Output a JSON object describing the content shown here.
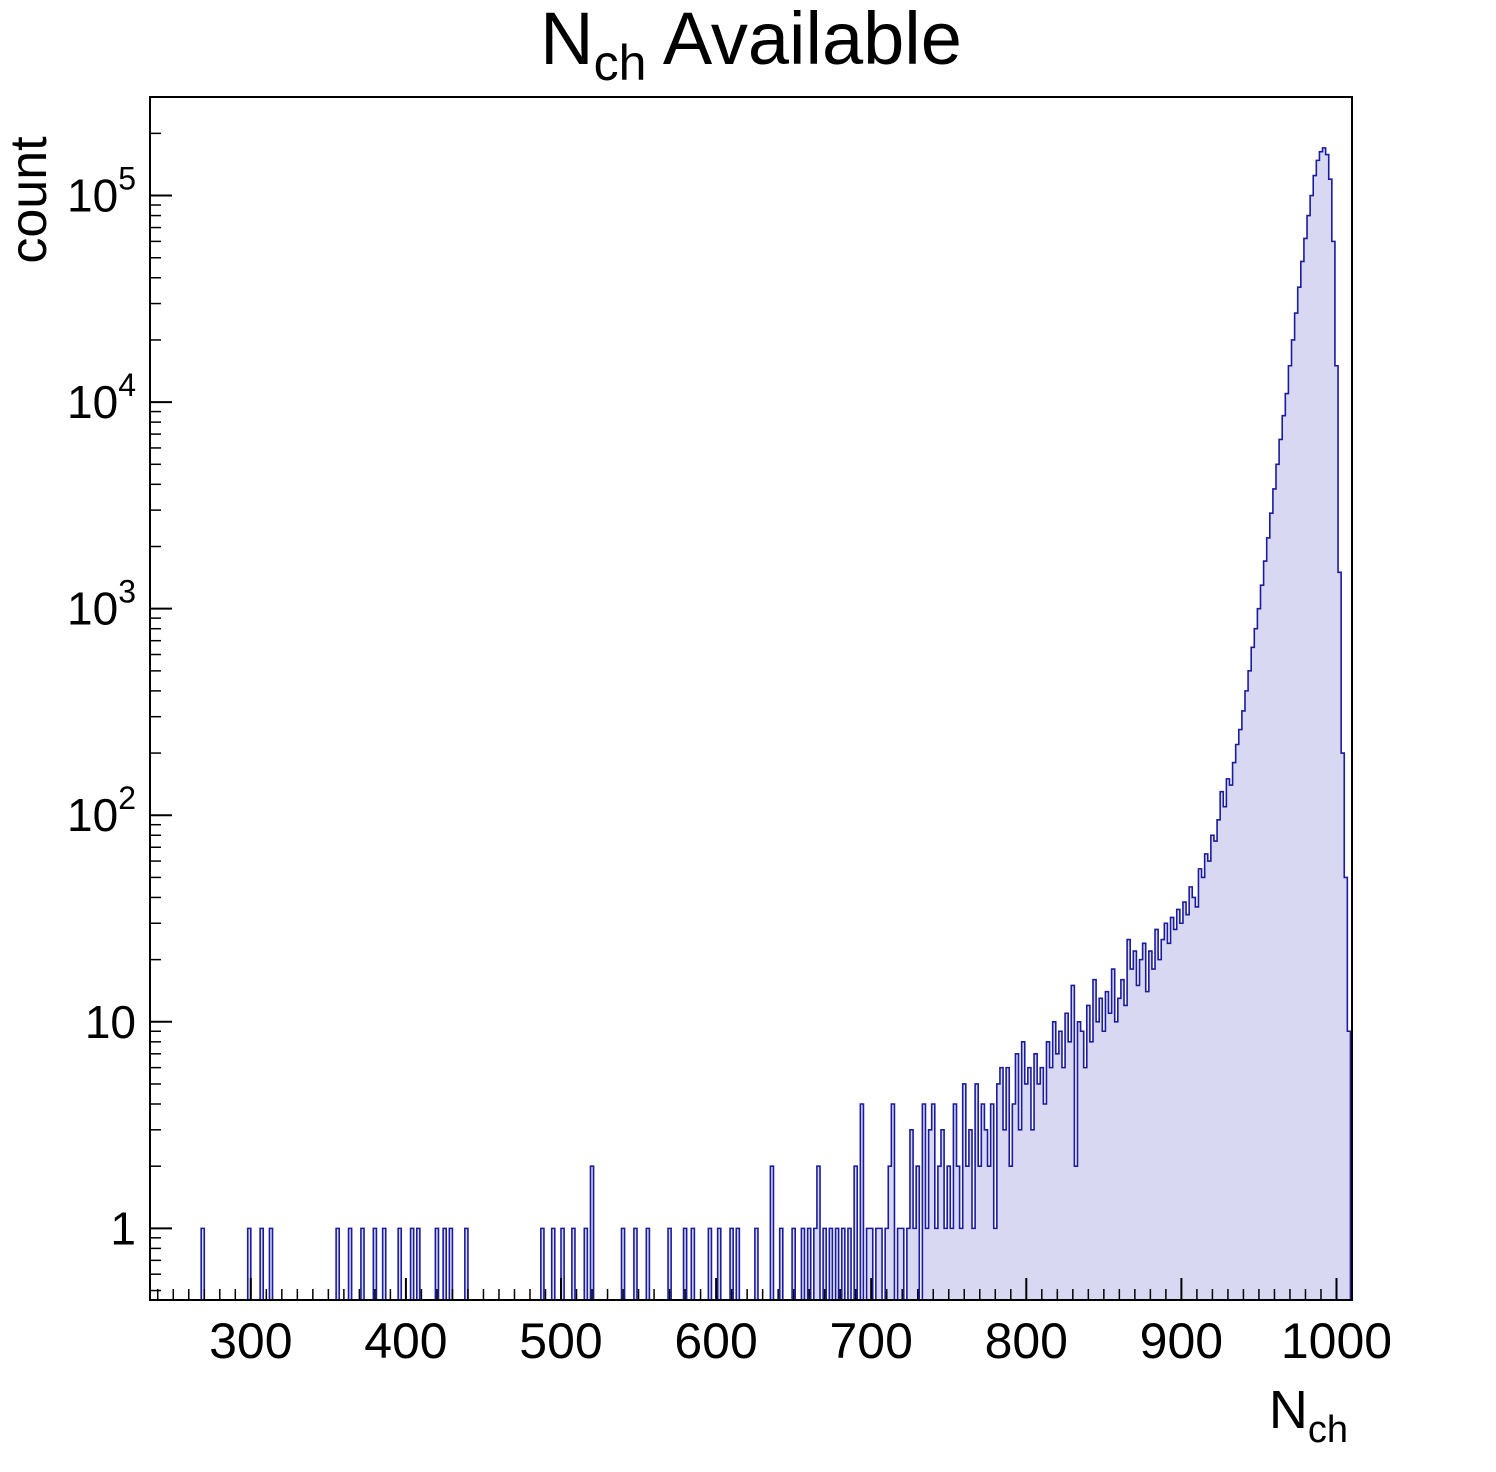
{
  "figure": {
    "background": "#ffffff"
  },
  "chart_data": {
    "type": "bar",
    "subtype": "histogram-log-y",
    "title": {
      "prefix": "N",
      "sub": "ch",
      "suffix": " Available"
    },
    "xlabel": {
      "prefix": "N",
      "sub": "ch"
    },
    "ylabel": "count",
    "x_range": [
      235,
      1010
    ],
    "y_range": [
      0.45,
      300000
    ],
    "y_scale": "log",
    "grid": false,
    "legend": "none",
    "bin_width": 2,
    "x_major_ticks": [
      300,
      400,
      500,
      600,
      700,
      800,
      900,
      1000
    ],
    "x_minor_step": 10,
    "y_tick_labels": [
      {
        "v": 1,
        "base": "1",
        "exp": ""
      },
      {
        "v": 10,
        "base": "10",
        "exp": ""
      },
      {
        "v": 100,
        "base": "10",
        "exp": "2"
      },
      {
        "v": 1000,
        "base": "10",
        "exp": "3"
      },
      {
        "v": 10000,
        "base": "10",
        "exp": "4"
      },
      {
        "v": 100000,
        "base": "10",
        "exp": "5"
      }
    ],
    "line_color": "#1b1b9e",
    "fill_color": "#d8d8f3",
    "frame_color": "#000000",
    "bins": [
      [
        268,
        1
      ],
      [
        298,
        1
      ],
      [
        306,
        1
      ],
      [
        312,
        1
      ],
      [
        355,
        1
      ],
      [
        363,
        1
      ],
      [
        371,
        1
      ],
      [
        379,
        1
      ],
      [
        385,
        1
      ],
      [
        395,
        1
      ],
      [
        403,
        1
      ],
      [
        407,
        1
      ],
      [
        419,
        1
      ],
      [
        424,
        1
      ],
      [
        428,
        1
      ],
      [
        438,
        1
      ],
      [
        487,
        1
      ],
      [
        494,
        1
      ],
      [
        500,
        1
      ],
      [
        507,
        1
      ],
      [
        515,
        1
      ],
      [
        519,
        2
      ],
      [
        539,
        1
      ],
      [
        547,
        1
      ],
      [
        555,
        1
      ],
      [
        569,
        1
      ],
      [
        579,
        1
      ],
      [
        584,
        1
      ],
      [
        595,
        1
      ],
      [
        601,
        1
      ],
      [
        609,
        1
      ],
      [
        613,
        1
      ],
      [
        625,
        1
      ],
      [
        635,
        2
      ],
      [
        641,
        1
      ],
      [
        649,
        1
      ],
      [
        655,
        1
      ],
      [
        659,
        1
      ],
      [
        663,
        1
      ],
      [
        665,
        2
      ],
      [
        669,
        1
      ],
      [
        673,
        1
      ],
      [
        677,
        1
      ],
      [
        681,
        1
      ],
      [
        685,
        1
      ],
      [
        689,
        2
      ],
      [
        693,
        4
      ],
      [
        697,
        1
      ],
      [
        699,
        1
      ],
      [
        703,
        1
      ],
      [
        705,
        1
      ],
      [
        709,
        1
      ],
      [
        711,
        2
      ],
      [
        713,
        4
      ],
      [
        717,
        1
      ],
      [
        719,
        1
      ],
      [
        723,
        1
      ],
      [
        725,
        3
      ],
      [
        727,
        1
      ],
      [
        729,
        2
      ],
      [
        733,
        4
      ],
      [
        735,
        1
      ],
      [
        737,
        3
      ],
      [
        739,
        4
      ],
      [
        741,
        1
      ],
      [
        743,
        2
      ],
      [
        745,
        3
      ],
      [
        747,
        1
      ],
      [
        749,
        2
      ],
      [
        751,
        1
      ],
      [
        753,
        4
      ],
      [
        755,
        2
      ],
      [
        757,
        1
      ],
      [
        759,
        5
      ],
      [
        761,
        2
      ],
      [
        763,
        3
      ],
      [
        765,
        1
      ],
      [
        767,
        5
      ],
      [
        769,
        2
      ],
      [
        771,
        4
      ],
      [
        773,
        3
      ],
      [
        775,
        2
      ],
      [
        777,
        4
      ],
      [
        779,
        1
      ],
      [
        781,
        5
      ],
      [
        783,
        6
      ],
      [
        785,
        3
      ],
      [
        787,
        6
      ],
      [
        789,
        2
      ],
      [
        791,
        4
      ],
      [
        793,
        7
      ],
      [
        795,
        3
      ],
      [
        797,
        8
      ],
      [
        799,
        5
      ],
      [
        801,
        6
      ],
      [
        803,
        3
      ],
      [
        805,
        7
      ],
      [
        807,
        5
      ],
      [
        809,
        6
      ],
      [
        811,
        4
      ],
      [
        813,
        8
      ],
      [
        815,
        6
      ],
      [
        817,
        10
      ],
      [
        819,
        7
      ],
      [
        821,
        9
      ],
      [
        823,
        6
      ],
      [
        825,
        11
      ],
      [
        827,
        8
      ],
      [
        829,
        15
      ],
      [
        831,
        2
      ],
      [
        833,
        10
      ],
      [
        835,
        9
      ],
      [
        837,
        6
      ],
      [
        839,
        12
      ],
      [
        841,
        8
      ],
      [
        843,
        16
      ],
      [
        845,
        10
      ],
      [
        847,
        13
      ],
      [
        849,
        9
      ],
      [
        851,
        14
      ],
      [
        853,
        11
      ],
      [
        855,
        18
      ],
      [
        857,
        10
      ],
      [
        859,
        13
      ],
      [
        861,
        16
      ],
      [
        863,
        12
      ],
      [
        865,
        25
      ],
      [
        867,
        18
      ],
      [
        869,
        22
      ],
      [
        871,
        15
      ],
      [
        873,
        20
      ],
      [
        875,
        24
      ],
      [
        877,
        14
      ],
      [
        879,
        22
      ],
      [
        881,
        18
      ],
      [
        883,
        28
      ],
      [
        885,
        20
      ],
      [
        887,
        25
      ],
      [
        889,
        30
      ],
      [
        891,
        24
      ],
      [
        893,
        32
      ],
      [
        895,
        28
      ],
      [
        897,
        35
      ],
      [
        899,
        30
      ],
      [
        901,
        38
      ],
      [
        903,
        33
      ],
      [
        905,
        45
      ],
      [
        907,
        40
      ],
      [
        909,
        36
      ],
      [
        911,
        55
      ],
      [
        913,
        50
      ],
      [
        915,
        65
      ],
      [
        917,
        60
      ],
      [
        919,
        80
      ],
      [
        921,
        75
      ],
      [
        923,
        95
      ],
      [
        925,
        130
      ],
      [
        927,
        110
      ],
      [
        929,
        150
      ],
      [
        931,
        140
      ],
      [
        933,
        180
      ],
      [
        935,
        220
      ],
      [
        937,
        260
      ],
      [
        939,
        320
      ],
      [
        941,
        400
      ],
      [
        943,
        500
      ],
      [
        945,
        650
      ],
      [
        947,
        800
      ],
      [
        949,
        1000
      ],
      [
        951,
        1300
      ],
      [
        953,
        1700
      ],
      [
        955,
        2200
      ],
      [
        957,
        2900
      ],
      [
        959,
        3800
      ],
      [
        961,
        5000
      ],
      [
        963,
        6600
      ],
      [
        965,
        8600
      ],
      [
        967,
        11000
      ],
      [
        969,
        15000
      ],
      [
        971,
        20000
      ],
      [
        973,
        27000
      ],
      [
        975,
        36000
      ],
      [
        977,
        48000
      ],
      [
        979,
        62000
      ],
      [
        981,
        80000
      ],
      [
        983,
        100000
      ],
      [
        985,
        125000
      ],
      [
        987,
        148000
      ],
      [
        989,
        163000
      ],
      [
        991,
        170000
      ],
      [
        993,
        158000
      ],
      [
        995,
        120000
      ],
      [
        997,
        60000
      ],
      [
        999,
        15000
      ],
      [
        1001,
        1500
      ],
      [
        1003,
        200
      ],
      [
        1005,
        50
      ],
      [
        1007,
        9
      ]
    ]
  }
}
